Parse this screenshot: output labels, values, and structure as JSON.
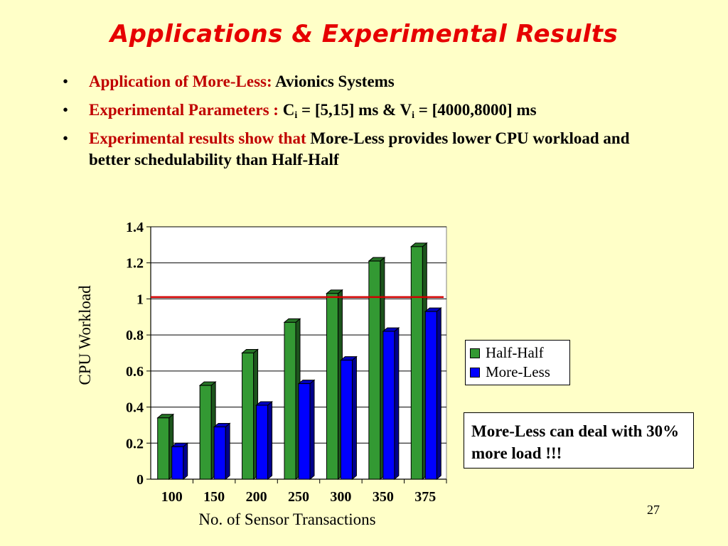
{
  "slide": {
    "title": "Applications & Experimental Results",
    "bullets": [
      {
        "lead": "Application of More-Less:",
        "rest": " Avionics Systems"
      },
      {
        "lead": "Experimental Parameters :",
        "c": " C",
        "c_sub": "i",
        "mid": " = [5,15] ms & V",
        "v_sub": "i",
        "end": " = [4000,8000] ms"
      },
      {
        "lead": "Experimental results show that",
        "rest": " More-Less provides lower CPU workload and better schedulability than Half-Half"
      }
    ],
    "bullet_glyph": "•",
    "note": "More-Less can deal with 30% more load !!!",
    "page_number": "27"
  },
  "chart_data": {
    "type": "bar",
    "categories": [
      "100",
      "150",
      "200",
      "250",
      "300",
      "350",
      "375"
    ],
    "series": [
      {
        "name": "Half-Half",
        "color": "#339933",
        "values": [
          0.34,
          0.52,
          0.7,
          0.87,
          1.03,
          1.21,
          1.29
        ]
      },
      {
        "name": "More-Less",
        "color": "#0000FF",
        "values": [
          0.18,
          0.29,
          0.41,
          0.53,
          0.66,
          0.82,
          0.93
        ]
      }
    ],
    "xlabel": "No. of Sensor Transactions",
    "ylabel": "CPU Workload",
    "ylim": [
      0,
      1.4
    ],
    "yticks": [
      "0",
      "0.2",
      "0.4",
      "0.6",
      "0.8",
      "1",
      "1.2",
      "1.4"
    ],
    "reference_line": {
      "value": 1.01,
      "color": "#D00000"
    },
    "grid": true,
    "legend_position": "right"
  }
}
